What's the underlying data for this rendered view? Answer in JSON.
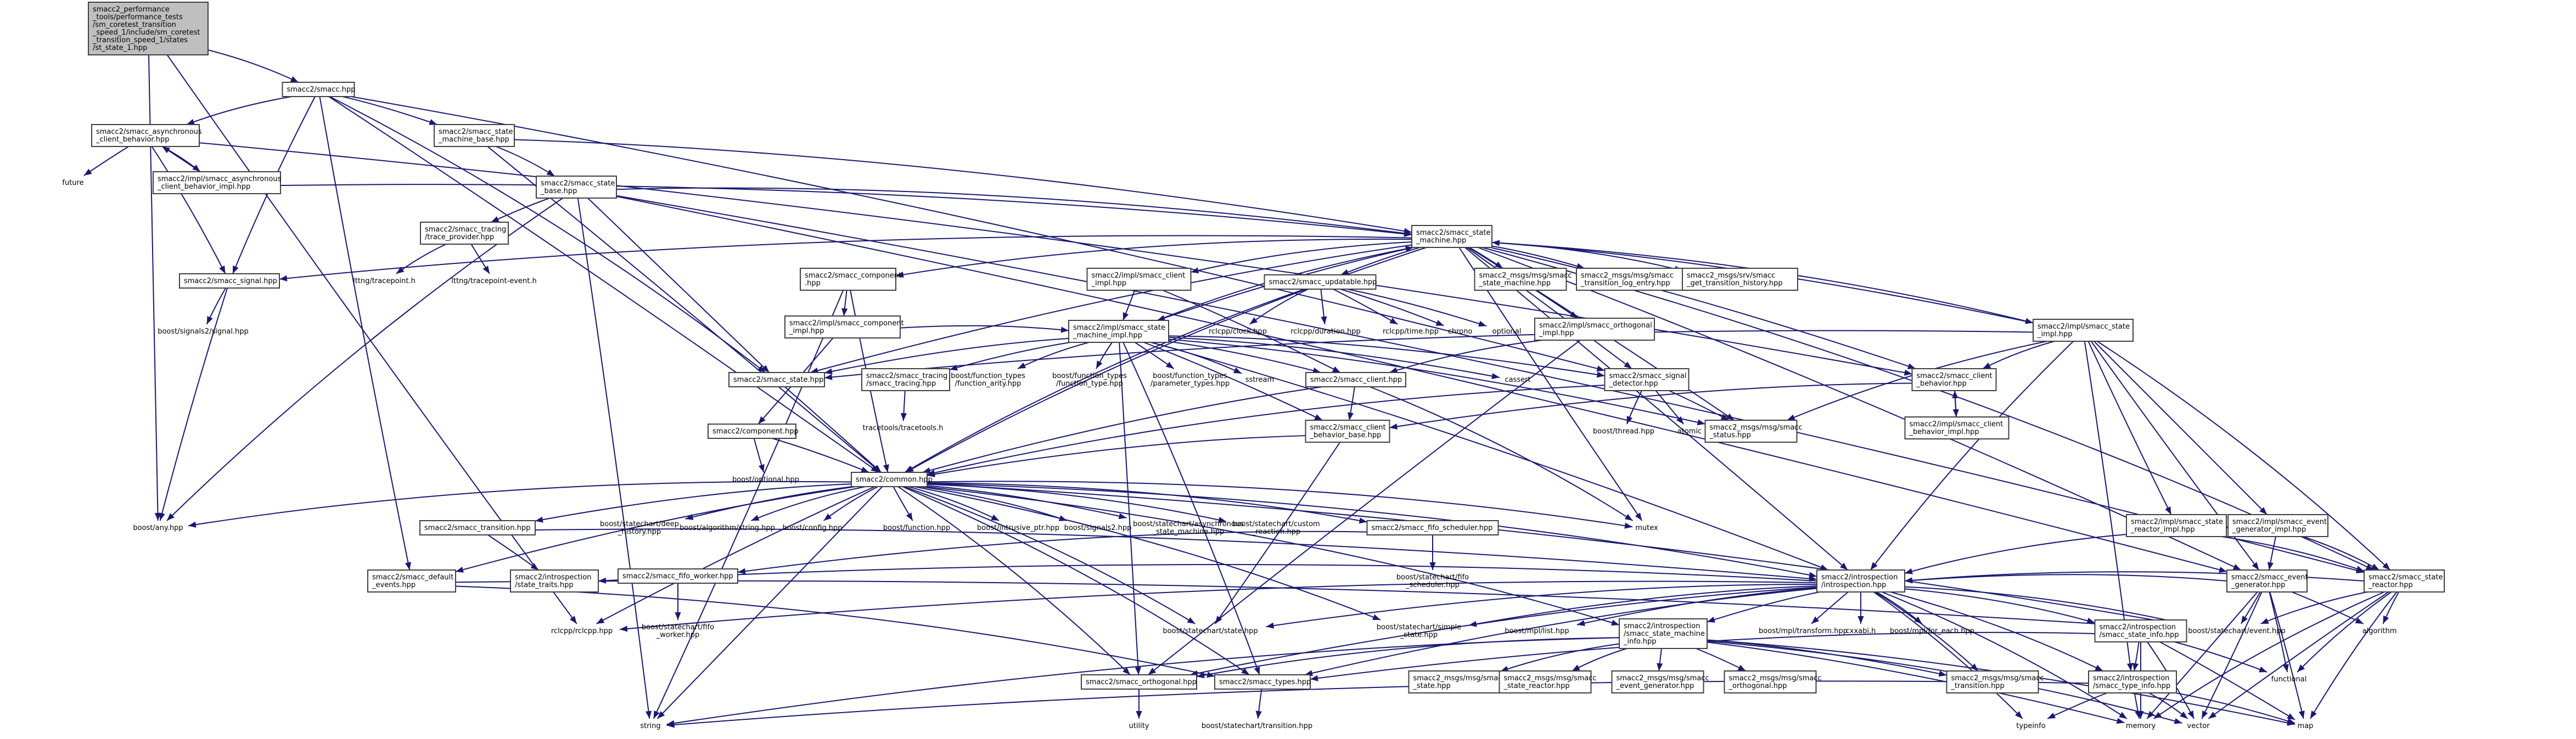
{
  "diagram": {
    "type": "include-dependency-graph",
    "nodes": [
      {
        "id": "root",
        "lines": [
          "smacc2_performance",
          "_tools/performance_tests",
          "/sm_coretest_transition",
          "_speed_1/include/sm_coretest",
          "_transition_speed_1/states",
          "/st_state_1.hpp"
        ],
        "root": true
      },
      {
        "id": "smacc",
        "lines": [
          "smacc2/smacc.hpp"
        ]
      },
      {
        "id": "async_client",
        "lines": [
          "smacc2/smacc_asynchronous",
          "_client_behavior.hpp"
        ]
      },
      {
        "id": "future",
        "lines": [
          "future"
        ],
        "plain": true
      },
      {
        "id": "async_impl",
        "lines": [
          "smacc2/impl/smacc_asynchronous",
          "_client_behavior_impl.hpp"
        ]
      },
      {
        "id": "sm_base",
        "lines": [
          "smacc2/smacc_state",
          "_machine_base.hpp"
        ]
      },
      {
        "id": "state_base",
        "lines": [
          "smacc2/smacc_state",
          "_base.hpp"
        ]
      },
      {
        "id": "tracing_tp",
        "lines": [
          "smacc2/smacc_tracing",
          "/trace_provider.hpp"
        ]
      },
      {
        "id": "lttng_tp",
        "lines": [
          "lttng/tracepoint.h"
        ],
        "plain": true
      },
      {
        "id": "lttng_tpe",
        "lines": [
          "lttng/tracepoint-event.h"
        ],
        "plain": true
      },
      {
        "id": "signal",
        "lines": [
          "smacc2/smacc_signal.hpp"
        ]
      },
      {
        "id": "boost_signal",
        "lines": [
          "boost/signals2/signal.hpp"
        ],
        "plain": true
      },
      {
        "id": "component",
        "lines": [
          "smacc2/smacc_component",
          ".hpp"
        ]
      },
      {
        "id": "comp_impl",
        "lines": [
          "smacc2/impl/smacc_component",
          "_impl.hpp"
        ]
      },
      {
        "id": "client_impl",
        "lines": [
          "smacc2/impl/smacc_client",
          "_impl.hpp"
        ]
      },
      {
        "id": "updatable",
        "lines": [
          "smacc2/smacc_updatable.hpp"
        ]
      },
      {
        "id": "sm",
        "lines": [
          "smacc2/smacc_state",
          "_machine.hpp"
        ]
      },
      {
        "id": "msg_sm",
        "lines": [
          "smacc2_msgs/msg/smacc",
          "_state_machine.hpp"
        ]
      },
      {
        "id": "msg_tle",
        "lines": [
          "smacc2_msgs/msg/smacc",
          "_transition_log_entry.hpp"
        ]
      },
      {
        "id": "srv_gth",
        "lines": [
          "smacc2_msgs/srv/smacc",
          "_get_transition_history.hpp"
        ]
      },
      {
        "id": "sm_impl",
        "lines": [
          "smacc2/impl/smacc_state",
          "_machine_impl.hpp"
        ]
      },
      {
        "id": "state_impl",
        "lines": [
          "smacc2/impl/smacc_state",
          "_impl.hpp"
        ]
      },
      {
        "id": "rclcpp_clock",
        "lines": [
          "rclcpp/clock.hpp"
        ],
        "plain": true
      },
      {
        "id": "rclcpp_dur",
        "lines": [
          "rclcpp/duration.hpp"
        ],
        "plain": true
      },
      {
        "id": "rclcpp_time",
        "lines": [
          "rclcpp/time.hpp"
        ],
        "plain": true
      },
      {
        "id": "chrono",
        "lines": [
          "chrono"
        ],
        "plain": true
      },
      {
        "id": "optional",
        "lines": [
          "optional"
        ],
        "plain": true
      },
      {
        "id": "orth_impl",
        "lines": [
          "smacc2/impl/smacc_orthogonal",
          "_impl.hpp"
        ]
      },
      {
        "id": "state",
        "lines": [
          "smacc2/smacc_state.hpp"
        ]
      },
      {
        "id": "tracing",
        "lines": [
          "smacc2/smacc_tracing",
          "/smacc_tracing.hpp"
        ]
      },
      {
        "id": "ft_any",
        "lines": [
          "boost/function_types",
          "/function_arity.hpp"
        ],
        "plain": true
      },
      {
        "id": "ft_type",
        "lines": [
          "boost/function_types",
          "/function_type.hpp"
        ],
        "plain": true
      },
      {
        "id": "ft_param",
        "lines": [
          "boost/function_types",
          "/parameter_types.hpp"
        ],
        "plain": true
      },
      {
        "id": "sstream",
        "lines": [
          "sstream"
        ],
        "plain": true
      },
      {
        "id": "client",
        "lines": [
          "smacc2/smacc_client.hpp"
        ]
      },
      {
        "id": "cassert",
        "lines": [
          "cassert"
        ],
        "plain": true
      },
      {
        "id": "sig_det",
        "lines": [
          "smacc2/smacc_signal",
          "_detector.hpp"
        ]
      },
      {
        "id": "client_beh",
        "lines": [
          "smacc2/smacc_client",
          "_behavior.hpp"
        ]
      },
      {
        "id": "client_beh_impl",
        "lines": [
          "smacc2/impl/smacc_client",
          "_behavior_impl.hpp"
        ]
      },
      {
        "id": "tracepoints",
        "lines": [
          "tracetools/tracetools.h"
        ],
        "plain": true
      },
      {
        "id": "component_hpp",
        "lines": [
          "smacc2/component.hpp"
        ]
      },
      {
        "id": "client_beh_base",
        "lines": [
          "smacc2/smacc_client",
          "_behavior_base.hpp"
        ]
      },
      {
        "id": "boost_thread",
        "lines": [
          "boost/thread.hpp"
        ],
        "plain": true
      },
      {
        "id": "atomic",
        "lines": [
          "atomic"
        ],
        "plain": true
      },
      {
        "id": "msg_status",
        "lines": [
          "smacc2_msgs/msg/smacc",
          "_status.hpp"
        ]
      },
      {
        "id": "boost_optional",
        "lines": [
          "boost/optional.hpp"
        ],
        "plain": true
      },
      {
        "id": "common",
        "lines": [
          "smacc2/common.hpp"
        ]
      },
      {
        "id": "boost_any",
        "lines": [
          "boost/any.hpp"
        ],
        "plain": true
      },
      {
        "id": "deep_hist",
        "lines": [
          "boost/statechart/deep",
          "_history.hpp"
        ],
        "plain": true
      },
      {
        "id": "algo_string",
        "lines": [
          "boost/algorithm/string.hpp"
        ],
        "plain": true
      },
      {
        "id": "boost_config",
        "lines": [
          "boost/config.hpp"
        ],
        "plain": true
      },
      {
        "id": "boost_function",
        "lines": [
          "boost/function.hpp"
        ],
        "plain": true
      },
      {
        "id": "intrusive_ptr",
        "lines": [
          "boost/intrusive_ptr.hpp"
        ],
        "plain": true
      },
      {
        "id": "signals2",
        "lines": [
          "boost/signals2.hpp"
        ],
        "plain": true
      },
      {
        "id": "async_sm",
        "lines": [
          "boost/statechart/asynchronous",
          "_state_machine.hpp"
        ],
        "plain": true
      },
      {
        "id": "custom_reaction",
        "lines": [
          "boost/statechart/custom",
          "_reaction.hpp"
        ],
        "plain": true
      },
      {
        "id": "fifo_sched",
        "lines": [
          "smacc2/smacc_fifo_scheduler.hpp"
        ]
      },
      {
        "id": "mutex",
        "lines": [
          "mutex"
        ],
        "plain": true
      },
      {
        "id": "transition",
        "lines": [
          "smacc2/smacc_transition.hpp"
        ]
      },
      {
        "id": "state_traits",
        "lines": [
          "smacc2/introspection",
          "/state_traits.hpp"
        ]
      },
      {
        "id": "default_events",
        "lines": [
          "smacc2/smacc_default",
          "_events.hpp"
        ]
      },
      {
        "id": "fifo_worker",
        "lines": [
          "smacc2/smacc_fifo_worker.hpp"
        ]
      },
      {
        "id": "sc_fifo_worker",
        "lines": [
          "boost/statechart/fifo",
          "_worker.hpp"
        ],
        "plain": true
      },
      {
        "id": "sc_fifo_sched",
        "lines": [
          "boost/statechart/fifo",
          "_scheduler.hpp"
        ],
        "plain": true
      },
      {
        "id": "introspection",
        "lines": [
          "smacc2/introspection",
          "/introspection.hpp"
        ]
      },
      {
        "id": "rclcpp",
        "lines": [
          "rclcpp/rclcpp.hpp"
        ],
        "plain": true
      },
      {
        "id": "sc_state",
        "lines": [
          "boost/statechart/state.hpp"
        ],
        "plain": true
      },
      {
        "id": "simple_state",
        "lines": [
          "boost/statechart/simple",
          "_state.hpp"
        ],
        "plain": true
      },
      {
        "id": "mpl_list",
        "lines": [
          "boost/mpl/list.hpp"
        ],
        "plain": true
      },
      {
        "id": "sm_info",
        "lines": [
          "smacc2/introspection",
          "/smacc_state_machine",
          "_info.hpp"
        ]
      },
      {
        "id": "mpl_transform",
        "lines": [
          "boost/mpl/transform.hpp"
        ],
        "plain": true
      },
      {
        "id": "cxxabi",
        "lines": [
          "cxxabi.h"
        ],
        "plain": true
      },
      {
        "id": "mpl_for_each",
        "lines": [
          "boost/mpl/for_each.hpp"
        ],
        "plain": true
      },
      {
        "id": "state_info",
        "lines": [
          "smacc2/introspection",
          "/smacc_state_info.hpp"
        ]
      },
      {
        "id": "sc_event",
        "lines": [
          "boost/statechart/event.hpp"
        ],
        "plain": true
      },
      {
        "id": "event_gen",
        "lines": [
          "smacc2/smacc_event",
          "_generator.hpp"
        ]
      },
      {
        "id": "state_reactor",
        "lines": [
          "smacc2/smacc_state",
          "_reactor.hpp"
        ]
      },
      {
        "id": "reactor_impl",
        "lines": [
          "smacc2/impl/smacc_state",
          "_reactor_impl.hpp"
        ]
      },
      {
        "id": "event_gen_impl",
        "lines": [
          "smacc2/impl/smacc_event",
          "_generator_impl.hpp"
        ]
      },
      {
        "id": "algorithm",
        "lines": [
          "algorithm"
        ],
        "plain": true
      },
      {
        "id": "functional",
        "lines": [
          "functional"
        ],
        "plain": true
      },
      {
        "id": "msg_state",
        "lines": [
          "smacc2_msgs/msg/smacc",
          "_state.hpp"
        ]
      },
      {
        "id": "msg_sr",
        "lines": [
          "smacc2_msgs/msg/smacc",
          "_state_reactor.hpp"
        ]
      },
      {
        "id": "msg_eg",
        "lines": [
          "smacc2_msgs/msg/smacc",
          "_event_generator.hpp"
        ]
      },
      {
        "id": "msg_orth",
        "lines": [
          "smacc2_msgs/msg/smacc",
          "_orthogonal.hpp"
        ]
      },
      {
        "id": "msg_trans",
        "lines": [
          "smacc2_msgs/msg/smacc",
          "_transition.hpp"
        ]
      },
      {
        "id": "type_info",
        "lines": [
          "smacc2/introspection",
          "/smacc_type_info.hpp"
        ]
      },
      {
        "id": "orthogonal",
        "lines": [
          "smacc2/smacc_orthogonal.hpp"
        ]
      },
      {
        "id": "types",
        "lines": [
          "smacc2/smacc_types.hpp"
        ]
      },
      {
        "id": "sc_transition",
        "lines": [
          "boost/statechart/transition.hpp"
        ],
        "plain": true
      },
      {
        "id": "utility",
        "lines": [
          "utility"
        ],
        "plain": true
      },
      {
        "id": "string",
        "lines": [
          "string"
        ],
        "plain": true
      },
      {
        "id": "typeinfo",
        "lines": [
          "typeinfo"
        ],
        "plain": true
      },
      {
        "id": "memory",
        "lines": [
          "memory"
        ],
        "plain": true
      },
      {
        "id": "vector",
        "lines": [
          "vector"
        ],
        "plain": true
      },
      {
        "id": "map",
        "lines": [
          "map"
        ],
        "plain": true
      }
    ]
  }
}
